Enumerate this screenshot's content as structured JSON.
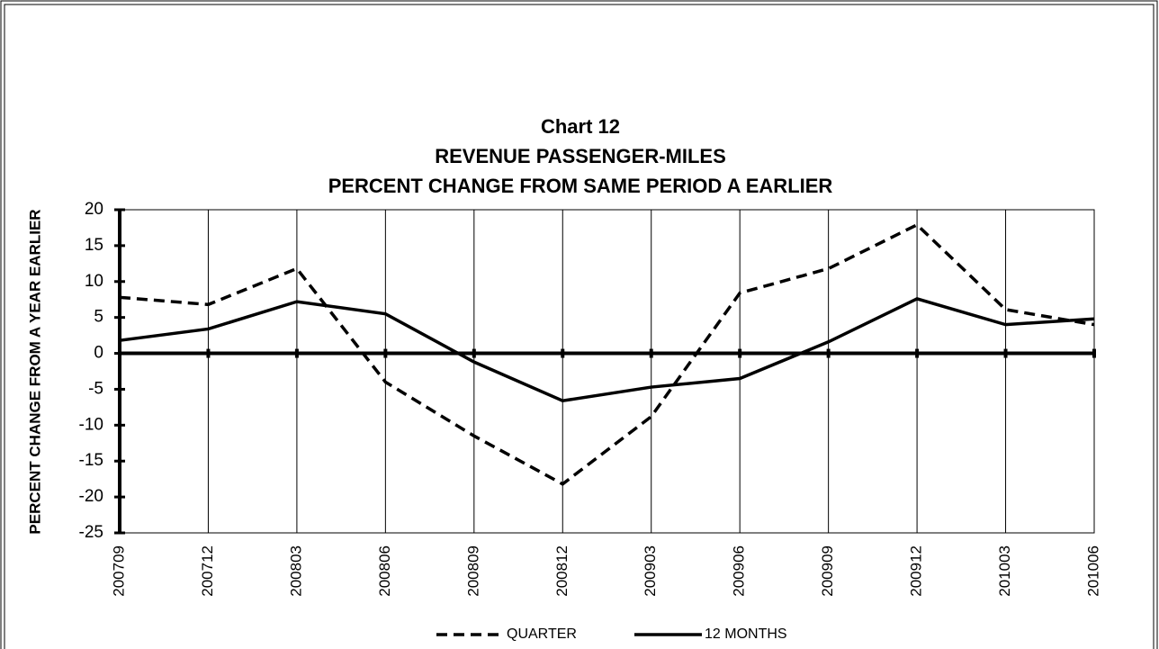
{
  "chart_data": {
    "type": "line",
    "title": "Chart 12",
    "subtitle": [
      "REVENUE PASSENGER-MILES",
      "PERCENT CHANGE FROM SAME PERIOD A EARLIER"
    ],
    "y_label": "PERCENT CHANGE FROM A YEAR EARLIER",
    "categories": [
      "200709",
      "200712",
      "200803",
      "200806",
      "200809",
      "200812",
      "200903",
      "200906",
      "200909",
      "200912",
      "201003",
      "201006"
    ],
    "series": [
      {
        "name": "QUARTER",
        "color": "#000000",
        "dash": "dashed",
        "values": [
          7.8,
          6.8,
          11.8,
          -4.0,
          -11.5,
          -18.2,
          -8.8,
          8.4,
          11.8,
          17.9,
          6.1,
          4.0
        ]
      },
      {
        "name": "12 MONTHS",
        "color": "#000000",
        "dash": "solid",
        "values": [
          1.8,
          3.4,
          7.2,
          5.5,
          -1.2,
          -6.6,
          -4.7,
          -3.5,
          1.6,
          7.6,
          4.0,
          4.8
        ]
      }
    ],
    "ylim": [
      -25,
      20
    ],
    "yticks": [
      -25,
      -20,
      -15,
      -10,
      -5,
      0,
      5,
      10,
      15,
      20
    ],
    "grid": "vertical",
    "legend": "bottom"
  }
}
